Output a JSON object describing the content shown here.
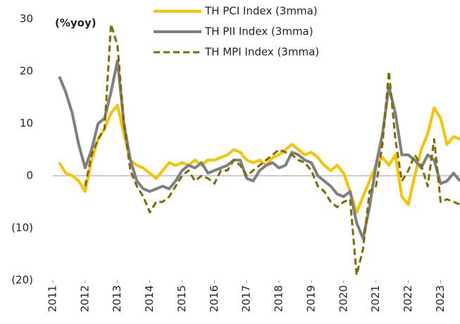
{
  "chart_data": {
    "type": "line",
    "annotations": [
      "(%yoy)"
    ],
    "x": [
      2011.2,
      2011.4,
      2011.6,
      2011.8,
      2012.0,
      2012.2,
      2012.4,
      2012.6,
      2012.8,
      2013.0,
      2013.2,
      2013.4,
      2013.6,
      2013.8,
      2014.0,
      2014.2,
      2014.4,
      2014.6,
      2014.8,
      2015.0,
      2015.2,
      2015.4,
      2015.6,
      2015.8,
      2016.0,
      2016.2,
      2016.4,
      2016.6,
      2016.8,
      2017.0,
      2017.2,
      2017.4,
      2017.6,
      2017.8,
      2018.0,
      2018.2,
      2018.4,
      2018.6,
      2018.8,
      2019.0,
      2019.2,
      2019.4,
      2019.6,
      2019.8,
      2020.0,
      2020.2,
      2020.4,
      2020.6,
      2020.8,
      2021.0,
      2021.2,
      2021.4,
      2021.6,
      2021.8,
      2022.0,
      2022.2,
      2022.4,
      2022.6,
      2022.8,
      2023.0,
      2023.2,
      2023.4,
      2023.6
    ],
    "series": [
      {
        "name": "TH PCI Index (3mma)",
        "color": "#f5c400",
        "dashed": false,
        "values": [
          2.5,
          0.5,
          0,
          -1,
          -3,
          3,
          7,
          9,
          12,
          13.5,
          8,
          3,
          2,
          1.5,
          0.5,
          -0.5,
          1,
          2.5,
          2,
          2.5,
          2,
          3,
          2,
          3,
          3,
          3.5,
          4,
          5,
          4.5,
          3,
          2.5,
          3,
          2,
          3.5,
          4,
          5,
          6,
          5,
          4,
          4.5,
          3.5,
          2,
          1,
          2,
          0.5,
          -3,
          -7,
          -4,
          -1,
          2,
          3.5,
          2,
          4,
          -4,
          -5.5,
          0,
          5,
          8,
          13,
          11,
          6,
          7.5,
          7
        ]
      },
      {
        "name": "TH PII Index (3mma)",
        "color": "#7f7f7f",
        "dashed": false,
        "values": [
          19,
          16,
          12,
          6,
          1.5,
          5,
          10,
          11,
          16,
          22,
          10,
          3,
          -1,
          -2.5,
          -3,
          -2.5,
          -2,
          -2.5,
          -1,
          1,
          2,
          1.5,
          2.5,
          0.5,
          1,
          1.5,
          2,
          3,
          3,
          -0.5,
          -1,
          1,
          2,
          2.5,
          1.5,
          2,
          4.5,
          4,
          3,
          2.5,
          0,
          -1,
          -2,
          -3.5,
          -4,
          -3,
          -9,
          -12,
          -6,
          2,
          8,
          17,
          12,
          4,
          4,
          3,
          1.5,
          4,
          3,
          -1.5,
          -1,
          0.5,
          -1
        ]
      },
      {
        "name": "TH MPI Index (3mma)",
        "color": "#7f6a00",
        "dashed": true,
        "values": [
          null,
          null,
          null,
          null,
          -2,
          4,
          7,
          9,
          29,
          25,
          10,
          1,
          -2,
          -4,
          -7,
          -5,
          -5,
          -4,
          -2,
          0,
          1,
          -1,
          0,
          -0.5,
          -1.5,
          1,
          1,
          3,
          2,
          0,
          1,
          2,
          3,
          4,
          5,
          4.5,
          4,
          3,
          2.5,
          1,
          -2,
          -3,
          -5,
          -6,
          -5,
          -4.5,
          -19,
          -14,
          -3,
          -2,
          6,
          20,
          7,
          -1,
          1,
          4,
          2,
          -2,
          7,
          -5,
          -4.5,
          -5,
          -5.5
        ]
      }
    ],
    "xlim": [
      2011,
      2023.6
    ],
    "xticks": [
      2011,
      2012,
      2013,
      2014,
      2015,
      2016,
      2017,
      2018,
      2019,
      2020,
      2021,
      2022,
      2023
    ],
    "ylim": [
      -20,
      30
    ],
    "yticks": [
      30,
      20,
      10,
      0,
      {
        "value": -10,
        "label": "(10)"
      },
      {
        "value": -20,
        "label": "(20)"
      }
    ],
    "grid": false,
    "legend": "top"
  }
}
